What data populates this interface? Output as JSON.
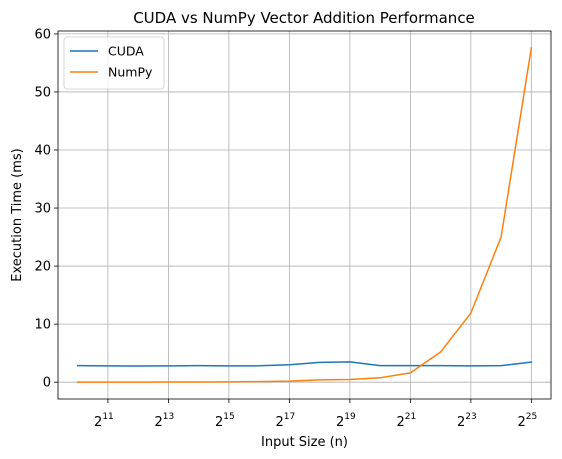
{
  "chart_data": {
    "type": "line",
    "title": "CUDA vs NumPy Vector Addition Performance",
    "xlabel": "Input Size (n)",
    "ylabel": "Execution Time (ms)",
    "x_scale": "log2",
    "x": [
      1024,
      2048,
      4096,
      8192,
      16384,
      32768,
      65536,
      131072,
      262144,
      524288,
      1048576,
      2097152,
      4194304,
      8388608,
      16777216,
      33554432
    ],
    "series": [
      {
        "name": "CUDA",
        "color": "#1f77b4",
        "values": [
          2.85,
          2.8,
          2.78,
          2.8,
          2.85,
          2.8,
          2.82,
          3.0,
          3.4,
          3.5,
          2.85,
          2.85,
          2.85,
          2.8,
          2.85,
          3.45
        ]
      },
      {
        "name": "NumPy",
        "color": "#ff7f0e",
        "values": [
          0.01,
          0.01,
          0.01,
          0.02,
          0.03,
          0.05,
          0.09,
          0.18,
          0.4,
          0.45,
          0.75,
          1.6,
          5.2,
          11.9,
          25.0,
          57.6
        ]
      }
    ],
    "xlim_exp": [
      9.35,
      25.65
    ],
    "ylim": [
      -2.9,
      60.5
    ],
    "x_ticks": [
      {
        "base": "2",
        "exp": "11",
        "value": 2048
      },
      {
        "base": "2",
        "exp": "13",
        "value": 8192
      },
      {
        "base": "2",
        "exp": "15",
        "value": 32768
      },
      {
        "base": "2",
        "exp": "17",
        "value": 131072
      },
      {
        "base": "2",
        "exp": "19",
        "value": 524288
      },
      {
        "base": "2",
        "exp": "21",
        "value": 2097152
      },
      {
        "base": "2",
        "exp": "23",
        "value": 8388608
      },
      {
        "base": "2",
        "exp": "25",
        "value": 33554432
      }
    ],
    "y_ticks": [
      "0",
      "10",
      "20",
      "30",
      "40",
      "50",
      "60"
    ],
    "grid": true,
    "legend_position": "upper-left"
  }
}
